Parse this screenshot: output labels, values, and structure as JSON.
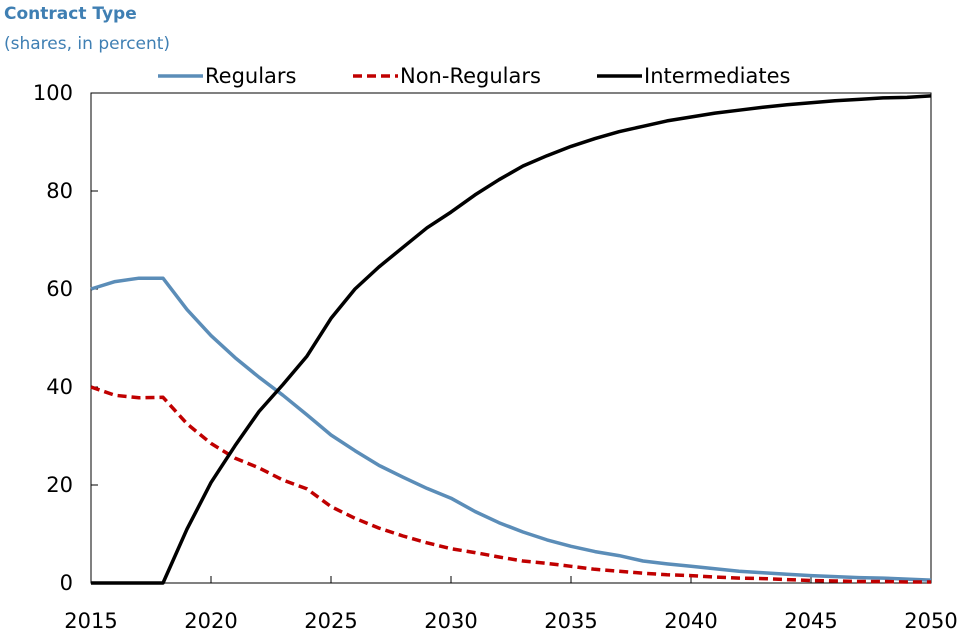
{
  "header": {
    "title": "Contract Type",
    "subtitle": "(shares, in percent)"
  },
  "chart_data": {
    "type": "line",
    "title": "Contract Type",
    "subtitle": "(shares, in percent)",
    "xlabel": "",
    "ylabel": "",
    "xlim": [
      2015,
      2050
    ],
    "ylim": [
      0,
      100
    ],
    "x_ticks": [
      2015,
      2020,
      2025,
      2030,
      2035,
      2040,
      2045,
      2050
    ],
    "y_ticks": [
      0,
      20,
      40,
      60,
      80,
      100
    ],
    "grid": false,
    "legend_position": "top",
    "x": [
      2015,
      2016,
      2017,
      2018,
      2019,
      2020,
      2021,
      2022,
      2023,
      2024,
      2025,
      2026,
      2027,
      2028,
      2029,
      2030,
      2031,
      2032,
      2033,
      2034,
      2035,
      2036,
      2037,
      2038,
      2039,
      2040,
      2041,
      2042,
      2043,
      2044,
      2045,
      2046,
      2047,
      2048,
      2049,
      2050
    ],
    "series": [
      {
        "name": "Regulars",
        "color": "#5b8db8",
        "dash": "solid",
        "values": [
          60,
          61.5,
          62.2,
          62.2,
          55.8,
          50.5,
          46,
          42,
          38.3,
          34.3,
          30.2,
          27,
          24,
          21.6,
          19.3,
          17.3,
          14.6,
          12.3,
          10.4,
          8.8,
          7.5,
          6.4,
          5.6,
          4.5,
          3.9,
          3.4,
          2.9,
          2.4,
          2.1,
          1.8,
          1.5,
          1.3,
          1.1,
          1,
          0.8,
          0.6
        ]
      },
      {
        "name": "Non-Regulars",
        "color": "#c00000",
        "dash": "dashed",
        "values": [
          40,
          38.3,
          37.8,
          37.9,
          32.5,
          28.5,
          25.5,
          23.5,
          21,
          19.2,
          15.6,
          13.2,
          11.2,
          9.6,
          8.2,
          7,
          6.2,
          5.3,
          4.5,
          4,
          3.4,
          2.8,
          2.4,
          2,
          1.7,
          1.5,
          1.2,
          1,
          0.9,
          0.7,
          0.5,
          0.4,
          0.3,
          0.3,
          0.2,
          0.2
        ]
      },
      {
        "name": "Intermediates",
        "color": "#000000",
        "dash": "solid",
        "values": [
          0,
          0,
          0,
          0,
          11,
          20.5,
          28,
          35,
          40.5,
          46.3,
          54,
          60,
          64.5,
          68.5,
          72.5,
          75.7,
          79.2,
          82.3,
          85.1,
          87.2,
          89.1,
          90.7,
          92.1,
          93.2,
          94.3,
          95.1,
          95.9,
          96.5,
          97.1,
          97.6,
          98,
          98.4,
          98.7,
          99,
          99.1,
          99.4
        ]
      }
    ]
  }
}
